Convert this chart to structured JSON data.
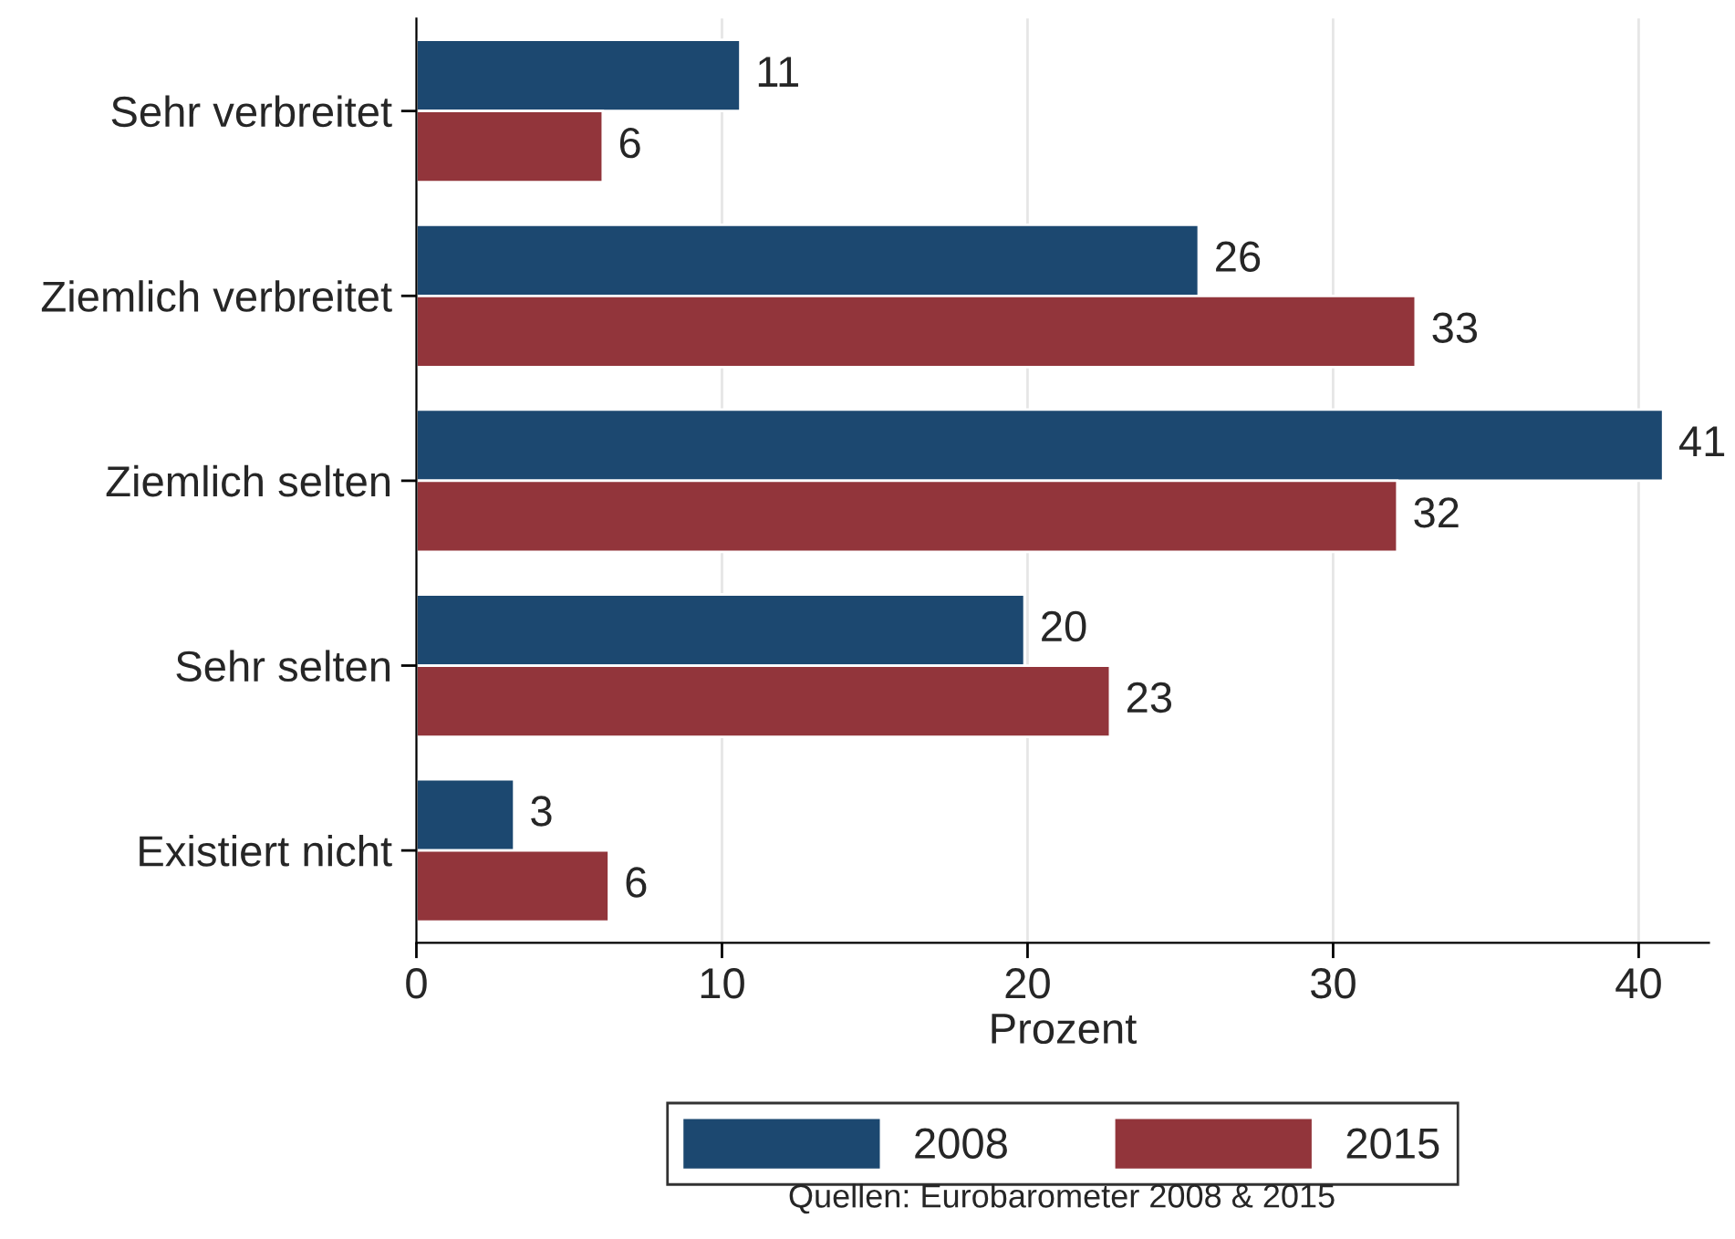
{
  "chart_data": {
    "type": "bar",
    "orientation": "horizontal",
    "categories": [
      "Sehr verbreitet",
      "Ziemlich verbreitet",
      "Ziemlich selten",
      "Sehr selten",
      "Existiert nicht"
    ],
    "series": [
      {
        "name": "2008",
        "color": "#1c4870",
        "values": [
          10.6,
          25.6,
          40.8,
          19.9,
          3.2
        ],
        "value_labels": [
          "11",
          "26",
          "41",
          "20",
          "3"
        ]
      },
      {
        "name": "2015",
        "color": "#92353b",
        "values": [
          6.1,
          32.7,
          32.1,
          22.7,
          6.3
        ],
        "value_labels": [
          "6",
          "33",
          "32",
          "23",
          "6"
        ]
      }
    ],
    "xlabel": "Prozent",
    "xlim": [
      0,
      42.3
    ],
    "xticks": [
      0,
      10,
      20,
      30,
      40
    ],
    "grid": "x",
    "legend": "bottom",
    "annotations": [
      "Quellen: Eurobarometer 2008 & 2015"
    ]
  }
}
